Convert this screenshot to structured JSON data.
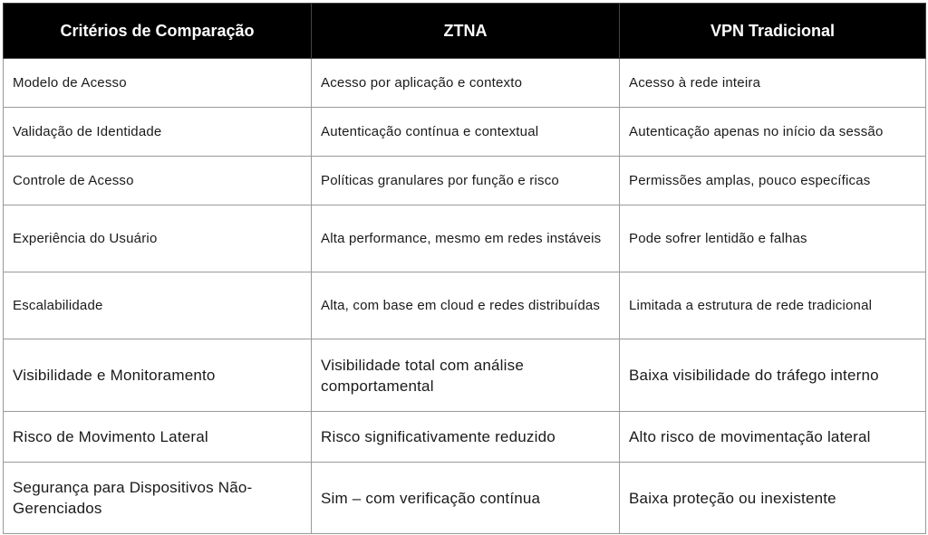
{
  "table": {
    "header": [
      "Critérios de Comparação",
      "ZTNA",
      "VPN Tradicional"
    ],
    "rows": [
      [
        "Modelo de Acesso",
        "Acesso por aplicação e contexto",
        "Acesso à rede inteira"
      ],
      [
        "Validação de Identidade",
        "Autenticação contínua e contextual",
        "Autenticação apenas no início da sessão"
      ],
      [
        "Controle de Acesso",
        "Políticas granulares por função e risco",
        "Permissões amplas, pouco específicas"
      ],
      [
        "Experiência do Usuário",
        "Alta performance, mesmo em redes instáveis",
        "Pode sofrer lentidão e falhas"
      ],
      [
        "Escalabilidade",
        "Alta, com base em cloud e redes distribuídas",
        "Limitada a estrutura de rede tradicional"
      ],
      [
        "Visibilidade e Monitoramento",
        "Visibilidade total com análise comportamental",
        "Baixa visibilidade do tráfego interno"
      ],
      [
        "Risco de Movimento Lateral",
        "Risco significativamente reduzido",
        "Alto risco de movimentação lateral"
      ],
      [
        "Segurança para Dispositivos Não-Gerenciados",
        "Sim – com verificação contínua",
        "Baixa proteção ou inexistente"
      ]
    ]
  }
}
